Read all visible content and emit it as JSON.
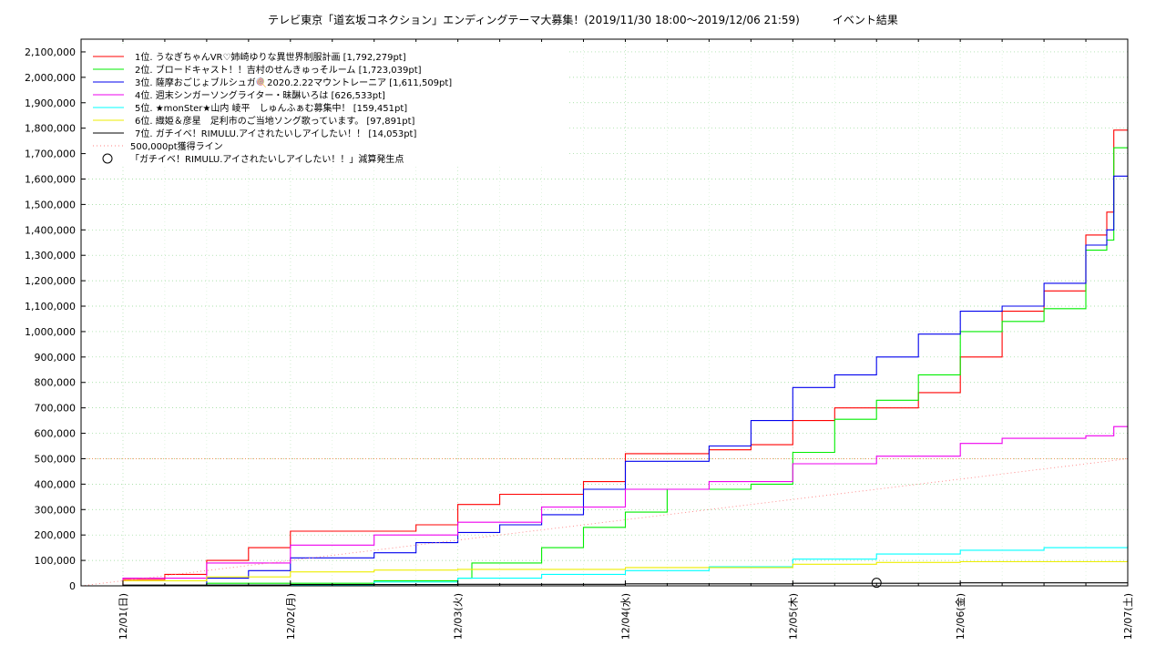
{
  "chart_data": {
    "type": "line",
    "title": "テレビ東京「道玄坂コネクション」エンディングテーマ大募集！(2019/11/30 18:00～2019/12/06 21:59)　　　イベント結果",
    "xlabel": "",
    "ylabel": "",
    "x_start": "2019-11-30 18:00",
    "x_end": "2019-12-07 00:00",
    "xticks": [
      "12/01(日)",
      "12/02(月)",
      "12/03(火)",
      "12/04(水)",
      "12/05(木)",
      "12/06(金)",
      "12/07(土)"
    ],
    "ylim": [
      0,
      2150000
    ],
    "yticks": [
      "0",
      "100,000",
      "200,000",
      "300,000",
      "400,000",
      "500,000",
      "600,000",
      "700,000",
      "800,000",
      "900,000",
      "1,000,000",
      "1,100,000",
      "1,200,000",
      "1,300,000",
      "1,400,000",
      "1,500,000",
      "1,600,000",
      "1,700,000",
      "1,800,000",
      "1,900,000",
      "2,000,000",
      "2,100,000"
    ],
    "grid": true,
    "legend_position": "top-left",
    "series": [
      {
        "name": "1位. うなぎちゃんVR♡姉崎ゆりな異世界制服計画 [1,792,279pt]",
        "color": "#ff0000",
        "points": [
          [
            "2019-11-30 18:00",
            0
          ],
          [
            "2019-12-01 00:00",
            25000
          ],
          [
            "2019-12-01 06:00",
            45000
          ],
          [
            "2019-12-01 12:00",
            100000
          ],
          [
            "2019-12-01 18:00",
            150000
          ],
          [
            "2019-12-02 00:00",
            215000
          ],
          [
            "2019-12-02 12:00",
            215000
          ],
          [
            "2019-12-02 18:00",
            240000
          ],
          [
            "2019-12-03 00:00",
            320000
          ],
          [
            "2019-12-03 06:00",
            360000
          ],
          [
            "2019-12-03 12:00",
            360000
          ],
          [
            "2019-12-03 18:00",
            410000
          ],
          [
            "2019-12-04 00:00",
            520000
          ],
          [
            "2019-12-04 12:00",
            535000
          ],
          [
            "2019-12-04 18:00",
            555000
          ],
          [
            "2019-12-05 00:00",
            650000
          ],
          [
            "2019-12-05 06:00",
            700000
          ],
          [
            "2019-12-05 12:00",
            700000
          ],
          [
            "2019-12-05 18:00",
            760000
          ],
          [
            "2019-12-06 00:00",
            900000
          ],
          [
            "2019-12-06 06:00",
            1080000
          ],
          [
            "2019-12-06 12:00",
            1160000
          ],
          [
            "2019-12-06 18:00",
            1380000
          ],
          [
            "2019-12-06 21:00",
            1470000
          ],
          [
            "2019-12-06 22:00",
            1792279
          ],
          [
            "2019-12-07 00:00",
            1792279
          ]
        ]
      },
      {
        "name": "2位. ブロードキャスト！！吉村のせんきゅっそルーム [1,723,039pt]",
        "color": "#00ee00",
        "points": [
          [
            "2019-11-30 18:00",
            0
          ],
          [
            "2019-12-01 12:00",
            10000
          ],
          [
            "2019-12-02 12:00",
            20000
          ],
          [
            "2019-12-03 00:00",
            30000
          ],
          [
            "2019-12-03 02:00",
            90000
          ],
          [
            "2019-12-03 12:00",
            150000
          ],
          [
            "2019-12-03 18:00",
            230000
          ],
          [
            "2019-12-04 00:00",
            290000
          ],
          [
            "2019-12-04 06:00",
            380000
          ],
          [
            "2019-12-04 18:00",
            400000
          ],
          [
            "2019-12-05 00:00",
            525000
          ],
          [
            "2019-12-05 06:00",
            655000
          ],
          [
            "2019-12-05 12:00",
            730000
          ],
          [
            "2019-12-05 18:00",
            830000
          ],
          [
            "2019-12-06 00:00",
            1000000
          ],
          [
            "2019-12-06 06:00",
            1040000
          ],
          [
            "2019-12-06 12:00",
            1090000
          ],
          [
            "2019-12-06 18:00",
            1320000
          ],
          [
            "2019-12-06 21:00",
            1360000
          ],
          [
            "2019-12-06 22:00",
            1723039
          ],
          [
            "2019-12-07 00:00",
            1723039
          ]
        ]
      },
      {
        "name": "3位. 薩摩おごじょブルシュガ🍭2020.2.22マウントレーニア [1,611,509pt]",
        "color": "#0000ee",
        "points": [
          [
            "2019-11-30 18:00",
            0
          ],
          [
            "2019-12-01 12:00",
            30000
          ],
          [
            "2019-12-01 18:00",
            60000
          ],
          [
            "2019-12-02 00:00",
            110000
          ],
          [
            "2019-12-02 12:00",
            130000
          ],
          [
            "2019-12-02 18:00",
            170000
          ],
          [
            "2019-12-03 00:00",
            210000
          ],
          [
            "2019-12-03 06:00",
            240000
          ],
          [
            "2019-12-03 12:00",
            280000
          ],
          [
            "2019-12-03 18:00",
            380000
          ],
          [
            "2019-12-04 00:00",
            490000
          ],
          [
            "2019-12-04 12:00",
            550000
          ],
          [
            "2019-12-04 18:00",
            650000
          ],
          [
            "2019-12-05 00:00",
            780000
          ],
          [
            "2019-12-05 06:00",
            830000
          ],
          [
            "2019-12-05 12:00",
            900000
          ],
          [
            "2019-12-05 18:00",
            990000
          ],
          [
            "2019-12-06 00:00",
            1080000
          ],
          [
            "2019-12-06 06:00",
            1100000
          ],
          [
            "2019-12-06 12:00",
            1190000
          ],
          [
            "2019-12-06 18:00",
            1340000
          ],
          [
            "2019-12-06 21:00",
            1400000
          ],
          [
            "2019-12-06 22:00",
            1611509
          ],
          [
            "2019-12-07 00:00",
            1611509
          ]
        ]
      },
      {
        "name": "4位. 週末シンガーソングライター・昧醂いろは [626,533pt]",
        "color": "#ee00ee",
        "points": [
          [
            "2019-11-30 18:00",
            0
          ],
          [
            "2019-12-01 00:00",
            30000
          ],
          [
            "2019-12-01 12:00",
            90000
          ],
          [
            "2019-12-02 00:00",
            160000
          ],
          [
            "2019-12-02 12:00",
            200000
          ],
          [
            "2019-12-03 00:00",
            250000
          ],
          [
            "2019-12-03 12:00",
            310000
          ],
          [
            "2019-12-04 00:00",
            380000
          ],
          [
            "2019-12-04 12:00",
            410000
          ],
          [
            "2019-12-05 00:00",
            480000
          ],
          [
            "2019-12-05 12:00",
            510000
          ],
          [
            "2019-12-06 00:00",
            560000
          ],
          [
            "2019-12-06 06:00",
            580000
          ],
          [
            "2019-12-06 18:00",
            590000
          ],
          [
            "2019-12-06 22:00",
            626533
          ],
          [
            "2019-12-07 00:00",
            626533
          ]
        ]
      },
      {
        "name": "5位. ★monSter★山内 崚平　しゅんふぁむ募集中！ [159,451pt]",
        "color": "#00ffff",
        "points": [
          [
            "2019-11-30 18:00",
            0
          ],
          [
            "2019-12-01 12:00",
            3000
          ],
          [
            "2019-12-02 12:00",
            15000
          ],
          [
            "2019-12-03 00:00",
            30000
          ],
          [
            "2019-12-03 12:00",
            45000
          ],
          [
            "2019-12-04 00:00",
            60000
          ],
          [
            "2019-12-04 12:00",
            75000
          ],
          [
            "2019-12-05 00:00",
            105000
          ],
          [
            "2019-12-05 12:00",
            125000
          ],
          [
            "2019-12-06 00:00",
            140000
          ],
          [
            "2019-12-06 12:00",
            150000
          ],
          [
            "2019-12-07 00:00",
            159451
          ]
        ]
      },
      {
        "name": "6位. 織姫＆彦星　足利市のご当地ソング歌っています。 [97,891pt]",
        "color": "#eeee00",
        "points": [
          [
            "2019-11-30 18:00",
            0
          ],
          [
            "2019-12-01 00:00",
            20000
          ],
          [
            "2019-12-01 12:00",
            35000
          ],
          [
            "2019-12-02 00:00",
            55000
          ],
          [
            "2019-12-02 12:00",
            62000
          ],
          [
            "2019-12-03 00:00",
            65000
          ],
          [
            "2019-12-04 00:00",
            72000
          ],
          [
            "2019-12-05 00:00",
            85000
          ],
          [
            "2019-12-05 12:00",
            92000
          ],
          [
            "2019-12-06 00:00",
            95000
          ],
          [
            "2019-12-07 00:00",
            97891
          ]
        ]
      },
      {
        "name": "7位. ガチイベ！RIMULU.アイされたいしアイしたい！！ [14,053pt]",
        "color": "#000000",
        "points": [
          [
            "2019-11-30 18:00",
            0
          ],
          [
            "2019-12-01 00:00",
            3000
          ],
          [
            "2019-12-02 00:00",
            5000
          ],
          [
            "2019-12-03 00:00",
            6000
          ],
          [
            "2019-12-04 00:00",
            8000
          ],
          [
            "2019-12-05 00:00",
            10000
          ],
          [
            "2019-12-06 00:00",
            12000
          ],
          [
            "2019-12-07 00:00",
            14053
          ]
        ]
      },
      {
        "name": "500,000pt獲得ライン",
        "color": "#ff8080",
        "dashed": true,
        "points": [
          [
            "2019-11-30 18:00",
            0
          ],
          [
            "2019-12-07 00:00",
            500000
          ]
        ]
      }
    ],
    "markers": [
      {
        "name": "「ガチイベ！RIMULU.アイされたいしアイしたい！！」減算発生点",
        "shape": "circle",
        "points": [
          [
            "2019-12-05 12:00",
            12000
          ]
        ]
      }
    ]
  }
}
